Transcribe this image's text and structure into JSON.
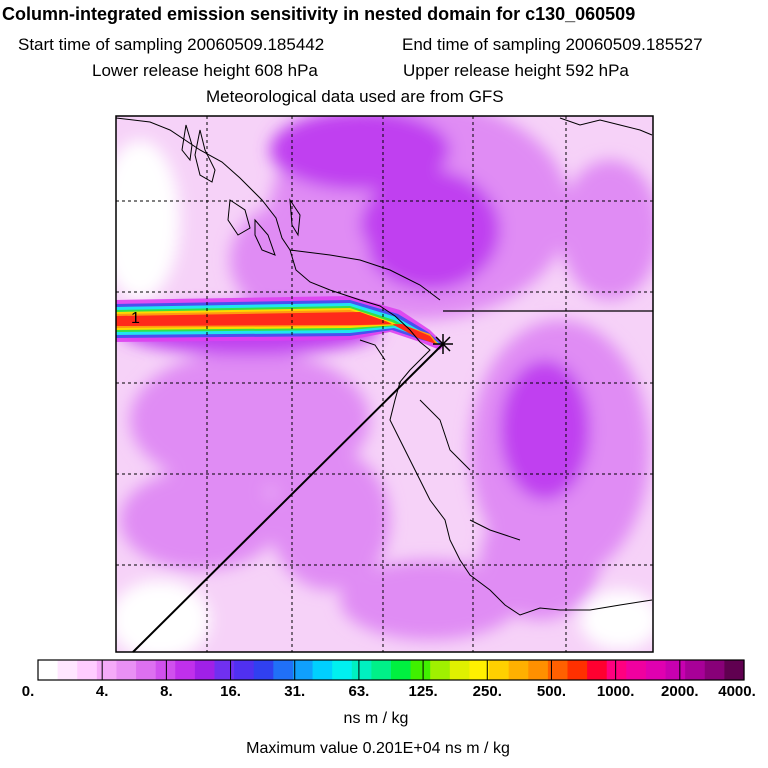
{
  "header": {
    "title": "Column-integrated emission sensitivity in nested domain for c130_060509",
    "start_time": "Start time of sampling 20060509.185442",
    "end_time": "End time of sampling 20060509.185527",
    "lower_height": "Lower release height  608 hPa",
    "upper_height": "Upper release height  592 hPa",
    "met_data": "Meteorological data used are from GFS"
  },
  "map": {
    "release_marker": "1",
    "colors": {
      "plume_red": "#ff2a1a",
      "plume_yellow": "#ffd800",
      "plume_green": "#33e048",
      "plume_cyan": "#20e4f0",
      "plume_blue": "#4a50f0",
      "background_light": "#f6d2f8",
      "background_mid": "#e08cf4",
      "background_strong": "#c040f0"
    }
  },
  "colorbar": {
    "labels": [
      "0.",
      "4.",
      "8.",
      "16.",
      "31.",
      "63.",
      "125.",
      "250.",
      "500.",
      "1000.",
      "2000.",
      "4000."
    ],
    "colors": [
      "#ffffff",
      "#ffe6ff",
      "#ffccff",
      "#f5aaf8",
      "#e990f4",
      "#dd70f0",
      "#d050ee",
      "#c030ec",
      "#a020e8",
      "#7030f0",
      "#5030f0",
      "#3040f0",
      "#2070f8",
      "#10a0fc",
      "#00d0ff",
      "#00f0f0",
      "#00f0c0",
      "#00f088",
      "#00f040",
      "#40f000",
      "#a0f000",
      "#e0f000",
      "#fff000",
      "#ffd000",
      "#ffb000",
      "#ff9000",
      "#ff6000",
      "#ff3000",
      "#ff0030",
      "#ff0080",
      "#f000a0",
      "#e000b0",
      "#c800b0",
      "#a80098",
      "#880078",
      "#600050"
    ],
    "units": "ns m / kg",
    "max_value": "Maximum value  0.201E+04 ns m / kg"
  }
}
